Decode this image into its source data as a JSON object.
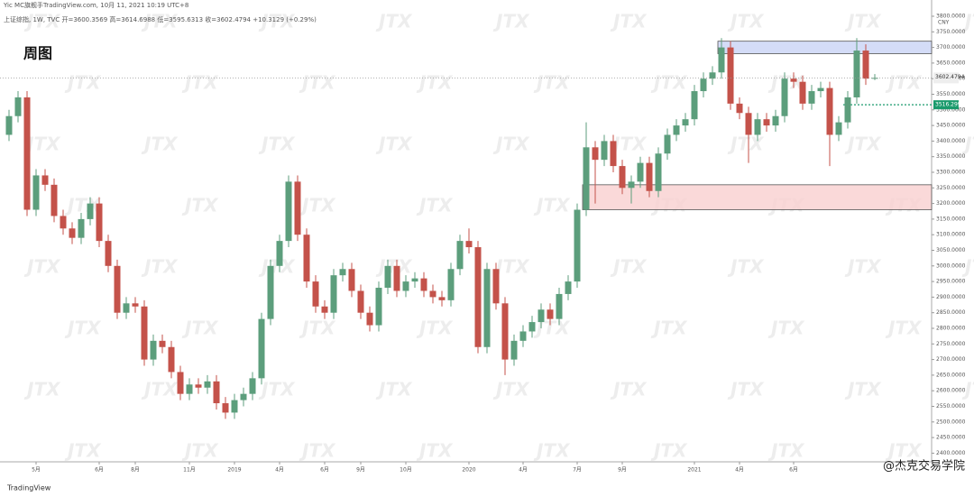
{
  "header": {
    "info": "Yic MC旗舰手TradingView.com, 10月 11, 2021 10:19 UTC+8",
    "symbol": "上证综指, 1W, TVC  开=3600.3569  高=3614.6988  低=3595.6313  收=3602.4794  +10.3129 (+0.29%)"
  },
  "footer": {
    "brand": "TradingView",
    "credit": "@杰克交易学院"
  },
  "chart_data": {
    "type": "candlestick",
    "title": "周图",
    "currency": "CNY",
    "watermark": "JTX",
    "up_color": "#5c9e7c",
    "down_color": "#c4524a",
    "ylim": [
      2350,
      3800
    ],
    "yticks": [
      {
        "value": 2400,
        "label": "2400.0000"
      },
      {
        "value": 2450,
        "label": "2450.0000"
      },
      {
        "value": 2500,
        "label": "2500.0000"
      },
      {
        "value": 2550,
        "label": "2550.0000"
      },
      {
        "value": 2600,
        "label": "2600.0000"
      },
      {
        "value": 2650,
        "label": "2650.0000"
      },
      {
        "value": 2700,
        "label": "2700.0000"
      },
      {
        "value": 2750,
        "label": "2750.0000"
      },
      {
        "value": 2800,
        "label": "2800.0000"
      },
      {
        "value": 2850,
        "label": "2850.0000"
      },
      {
        "value": 2900,
        "label": "2900.0000"
      },
      {
        "value": 2950,
        "label": "2950.0000"
      },
      {
        "value": 3000,
        "label": "3000.0000"
      },
      {
        "value": 3050,
        "label": "3050.0000"
      },
      {
        "value": 3100,
        "label": "3100.0000"
      },
      {
        "value": 3150,
        "label": "3150.0000"
      },
      {
        "value": 3200,
        "label": "3200.0000"
      },
      {
        "value": 3250,
        "label": "3250.0000"
      },
      {
        "value": 3300,
        "label": "3300.0000"
      },
      {
        "value": 3350,
        "label": "3350.0000"
      },
      {
        "value": 3400,
        "label": "3400.0000"
      },
      {
        "value": 3450,
        "label": "3450.0000"
      },
      {
        "value": 3500,
        "label": "3500.0000"
      },
      {
        "value": 3550,
        "label": "3550.0000"
      },
      {
        "value": 3600,
        "label": "3600.0000"
      },
      {
        "value": 3650,
        "label": "3650.0000"
      },
      {
        "value": 3700,
        "label": "3700.0000"
      },
      {
        "value": 3750,
        "label": "3750.0000"
      },
      {
        "value": 3800,
        "label": "3800.0000"
      }
    ],
    "xticks": [
      {
        "value": 3,
        "label": "5月"
      },
      {
        "value": 10,
        "label": "6月"
      },
      {
        "value": 14,
        "label": "8月"
      },
      {
        "value": 20,
        "label": "11月"
      },
      {
        "value": 25,
        "label": "2019"
      },
      {
        "value": 30,
        "label": "4月"
      },
      {
        "value": 35,
        "label": "6月"
      },
      {
        "value": 39,
        "label": "9月"
      },
      {
        "value": 44,
        "label": "10月"
      },
      {
        "value": 51,
        "label": "2020"
      },
      {
        "value": 57,
        "label": "4月"
      },
      {
        "value": 63,
        "label": "7月"
      },
      {
        "value": 68,
        "label": "9月"
      },
      {
        "value": 76,
        "label": "2021"
      },
      {
        "value": 81,
        "label": "4月"
      },
      {
        "value": 87,
        "label": "6月"
      }
    ],
    "support_line": {
      "value": 3516.299,
      "label": "3516.2990",
      "color": "#1a9a6c"
    },
    "zones": [
      {
        "start": 79,
        "top": 3720,
        "bottom": 3680,
        "color": "#c9d3f5"
      },
      {
        "start": 64,
        "top": 3260,
        "bottom": 3180,
        "color": "#f9cfcf"
      }
    ],
    "candles": [
      [
        3420,
        3500,
        3400,
        3480
      ],
      [
        3480,
        3560,
        3460,
        3540
      ],
      [
        3540,
        3560,
        3160,
        3180
      ],
      [
        3180,
        3310,
        3160,
        3290
      ],
      [
        3290,
        3310,
        3240,
        3260
      ],
      [
        3260,
        3280,
        3140,
        3160
      ],
      [
        3160,
        3180,
        3100,
        3120
      ],
      [
        3120,
        3140,
        3070,
        3090
      ],
      [
        3090,
        3170,
        3070,
        3150
      ],
      [
        3150,
        3220,
        3130,
        3200
      ],
      [
        3200,
        3220,
        3060,
        3080
      ],
      [
        3080,
        3100,
        2980,
        3000
      ],
      [
        3000,
        3020,
        2830,
        2850
      ],
      [
        2850,
        2900,
        2830,
        2880
      ],
      [
        2880,
        2900,
        2850,
        2870
      ],
      [
        2870,
        2890,
        2680,
        2700
      ],
      [
        2700,
        2780,
        2680,
        2760
      ],
      [
        2760,
        2780,
        2720,
        2740
      ],
      [
        2740,
        2760,
        2640,
        2660
      ],
      [
        2660,
        2680,
        2570,
        2590
      ],
      [
        2590,
        2640,
        2570,
        2620
      ],
      [
        2620,
        2640,
        2590,
        2610
      ],
      [
        2610,
        2650,
        2590,
        2630
      ],
      [
        2630,
        2650,
        2540,
        2560
      ],
      [
        2560,
        2580,
        2510,
        2530
      ],
      [
        2530,
        2590,
        2510,
        2570
      ],
      [
        2570,
        2610,
        2550,
        2590
      ],
      [
        2590,
        2660,
        2570,
        2640
      ],
      [
        2640,
        2850,
        2620,
        2830
      ],
      [
        2830,
        3020,
        2810,
        3000
      ],
      [
        3000,
        3100,
        2980,
        3080
      ],
      [
        3080,
        3290,
        3060,
        3270
      ],
      [
        3270,
        3290,
        3080,
        3100
      ],
      [
        3100,
        3120,
        2930,
        2950
      ],
      [
        2950,
        2970,
        2850,
        2870
      ],
      [
        2870,
        2890,
        2830,
        2850
      ],
      [
        2850,
        2990,
        2830,
        2970
      ],
      [
        2970,
        3010,
        2950,
        2990
      ],
      [
        2990,
        3010,
        2900,
        2920
      ],
      [
        2920,
        2940,
        2830,
        2850
      ],
      [
        2850,
        2870,
        2790,
        2810
      ],
      [
        2810,
        2950,
        2790,
        2930
      ],
      [
        2930,
        3020,
        2910,
        3000
      ],
      [
        3000,
        3020,
        2900,
        2920
      ],
      [
        2920,
        2970,
        2900,
        2950
      ],
      [
        2950,
        2980,
        2930,
        2960
      ],
      [
        2960,
        2980,
        2900,
        2920
      ],
      [
        2920,
        2940,
        2880,
        2900
      ],
      [
        2900,
        2920,
        2870,
        2890
      ],
      [
        2890,
        3010,
        2870,
        2990
      ],
      [
        2990,
        3100,
        2970,
        3080
      ],
      [
        3080,
        3120,
        3040,
        3060
      ],
      [
        3060,
        3080,
        2720,
        2740
      ],
      [
        2740,
        3010,
        2720,
        2990
      ],
      [
        2990,
        3010,
        2860,
        2880
      ],
      [
        2880,
        2900,
        2650,
        2700
      ],
      [
        2700,
        2780,
        2680,
        2760
      ],
      [
        2760,
        2810,
        2740,
        2790
      ],
      [
        2790,
        2840,
        2770,
        2820
      ],
      [
        2820,
        2880,
        2800,
        2860
      ],
      [
        2860,
        2880,
        2810,
        2830
      ],
      [
        2830,
        2930,
        2810,
        2910
      ],
      [
        2910,
        2970,
        2890,
        2950
      ],
      [
        2950,
        3200,
        2930,
        3180
      ],
      [
        3180,
        3460,
        3160,
        3380
      ],
      [
        3380,
        3400,
        3200,
        3340
      ],
      [
        3340,
        3420,
        3320,
        3400
      ],
      [
        3400,
        3420,
        3300,
        3320
      ],
      [
        3320,
        3340,
        3230,
        3250
      ],
      [
        3250,
        3290,
        3200,
        3270
      ],
      [
        3270,
        3350,
        3250,
        3330
      ],
      [
        3330,
        3350,
        3220,
        3240
      ],
      [
        3240,
        3380,
        3220,
        3360
      ],
      [
        3360,
        3440,
        3340,
        3420
      ],
      [
        3420,
        3470,
        3400,
        3450
      ],
      [
        3450,
        3490,
        3430,
        3470
      ],
      [
        3470,
        3580,
        3450,
        3560
      ],
      [
        3560,
        3620,
        3540,
        3600
      ],
      [
        3600,
        3640,
        3580,
        3620
      ],
      [
        3620,
        3730,
        3600,
        3700
      ],
      [
        3700,
        3720,
        3500,
        3520
      ],
      [
        3520,
        3540,
        3470,
        3490
      ],
      [
        3490,
        3510,
        3330,
        3420
      ],
      [
        3420,
        3490,
        3400,
        3470
      ],
      [
        3470,
        3490,
        3430,
        3450
      ],
      [
        3450,
        3500,
        3430,
        3480
      ],
      [
        3480,
        3620,
        3460,
        3600
      ],
      [
        3600,
        3620,
        3570,
        3590
      ],
      [
        3590,
        3610,
        3500,
        3520
      ],
      [
        3520,
        3580,
        3500,
        3560
      ],
      [
        3560,
        3590,
        3540,
        3570
      ],
      [
        3570,
        3590,
        3320,
        3420
      ],
      [
        3420,
        3480,
        3400,
        3460
      ],
      [
        3460,
        3560,
        3440,
        3540
      ],
      [
        3540,
        3730,
        3520,
        3690
      ],
      [
        3690,
        3710,
        3580,
        3600
      ],
      [
        3600.3569,
        3614.6988,
        3595.6313,
        3602.4794
      ]
    ]
  }
}
